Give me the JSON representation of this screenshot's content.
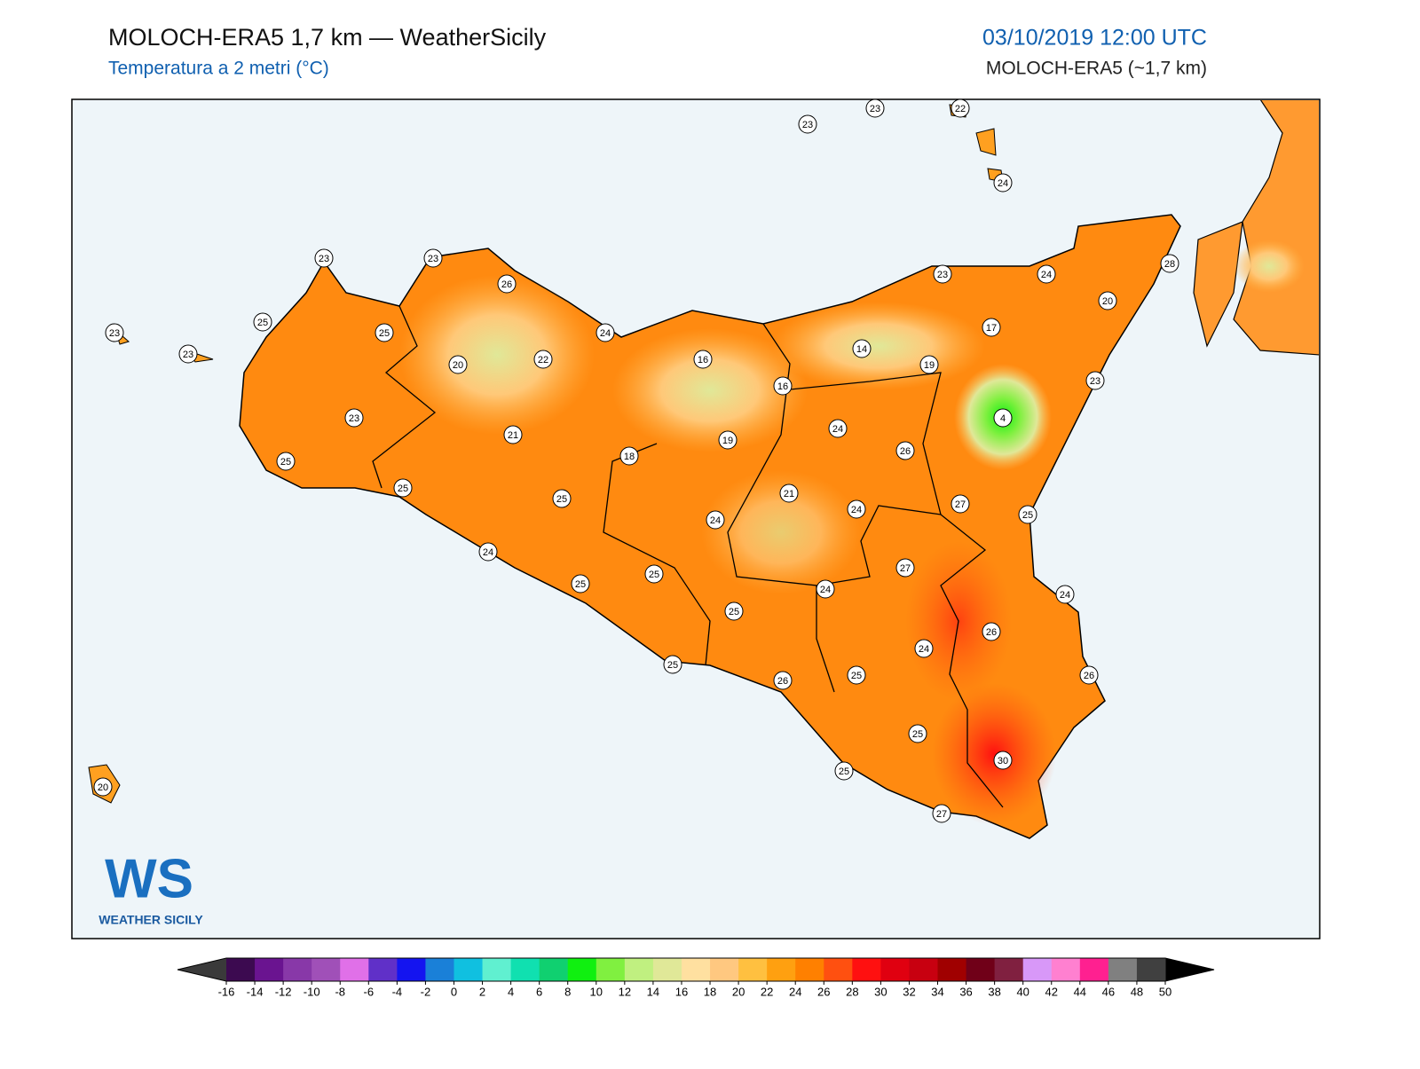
{
  "header": {
    "title": "MOLOCH-ERA5 1,7 km — WeatherSicily",
    "subtitle": "Temperatura a 2 metri (°C)",
    "date": "03/10/2019 12:00 UTC",
    "model": "MOLOCH-ERA5 (~1,7 km)"
  },
  "logo": {
    "mark": "WS",
    "name": "WEATHER SICILY"
  },
  "stations": [
    23,
    23,
    22,
    24,
    23,
    23,
    26,
    23,
    23,
    25,
    25,
    20,
    22,
    24,
    16,
    16,
    14,
    23,
    24,
    28,
    20,
    17,
    19,
    23,
    4,
    23,
    25,
    21,
    18,
    19,
    24,
    26,
    25,
    25,
    21,
    24,
    27,
    25,
    24,
    24,
    27,
    25,
    25,
    24,
    24,
    25,
    26,
    24,
    25,
    26,
    25,
    26,
    25,
    30,
    25,
    27,
    20
  ],
  "colorbar": {
    "ticks": [
      -16,
      -14,
      -12,
      -10,
      -8,
      -6,
      -4,
      -2,
      0,
      2,
      4,
      6,
      8,
      10,
      12,
      14,
      16,
      18,
      20,
      22,
      24,
      26,
      28,
      30,
      32,
      34,
      36,
      38,
      40,
      42,
      44,
      46,
      48,
      50
    ],
    "colors": [
      "#3c0a50",
      "#6a1490",
      "#8838a8",
      "#a050b8",
      "#e070e8",
      "#6030c8",
      "#1414f0",
      "#1a80d8",
      "#10c0e0",
      "#60f0d0",
      "#10e0b0",
      "#10d070",
      "#10f010",
      "#80f040",
      "#c0f080",
      "#e0e898",
      "#ffe0a0",
      "#ffc880",
      "#ffc040",
      "#ffa010",
      "#ff8000",
      "#ff5010",
      "#ff1010",
      "#e00010",
      "#c80010",
      "#a00000",
      "#700018",
      "#802040",
      "#d898f8",
      "#ff80d0",
      "#ff2090",
      "#808080",
      "#404040"
    ],
    "under": "#3a3a3a",
    "over": "#000000"
  }
}
